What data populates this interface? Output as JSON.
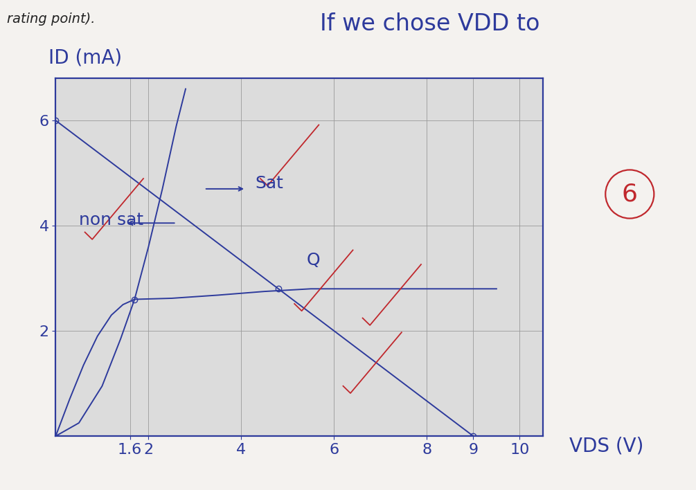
{
  "chart_data": {
    "type": "line",
    "header_texts": {
      "left": "rating point).",
      "right": "If we chose VDD to"
    },
    "x_label": "VDS (V)",
    "y_label": "ID (mA)",
    "xlim": [
      0,
      10.5
    ],
    "ylim": [
      0,
      6.8
    ],
    "xticks": [
      1.6,
      2,
      4,
      6,
      8,
      9,
      10
    ],
    "yticks": [
      2,
      4,
      6
    ],
    "grid": true,
    "color": "#2d3a9c",
    "series": [
      {
        "color": "#2d3a9c",
        "line_style": "solid",
        "marker": "none",
        "x": [
          0,
          9
        ],
        "values": [
          6,
          0
        ]
      },
      {
        "color": "#2d3a9c",
        "line_style": "solid",
        "marker": "none",
        "x": [
          0,
          0.3,
          0.6,
          0.9,
          1.2,
          1.45,
          1.7,
          2.5,
          3.5,
          4.5,
          5.5,
          7,
          9.5
        ],
        "values": [
          0,
          0.7,
          1.35,
          1.9,
          2.3,
          2.5,
          2.6,
          2.62,
          2.68,
          2.75,
          2.8,
          2.8,
          2.8
        ]
      },
      {
        "color": "#2d3a9c",
        "line_style": "solid",
        "marker": "none",
        "x": [
          0,
          0.5,
          1.0,
          1.4,
          1.7,
          2.0,
          2.3,
          2.6,
          2.8
        ],
        "values": [
          0,
          0.25,
          0.95,
          1.85,
          2.6,
          3.6,
          4.7,
          5.9,
          6.6
        ]
      },
      {
        "color": "#2d3a9c",
        "line_style": "none",
        "marker": "o",
        "x": [
          0,
          1.7,
          4.8,
          9
        ],
        "values": [
          6,
          2.6,
          2.8,
          0
        ]
      }
    ],
    "annotations": [
      {
        "text": "non sat",
        "x": 0.5,
        "y": 4.1,
        "color": "#2d3a9c"
      },
      {
        "text": "Sat",
        "x": 4.3,
        "y": 4.8,
        "color": "#2d3a9c"
      },
      {
        "text": "Q",
        "x": 5.4,
        "y": 3.35,
        "color": "#2d3a9c"
      },
      {
        "text": "6",
        "x": 12.2,
        "y": 4.6,
        "color": "#c0282d"
      }
    ]
  }
}
